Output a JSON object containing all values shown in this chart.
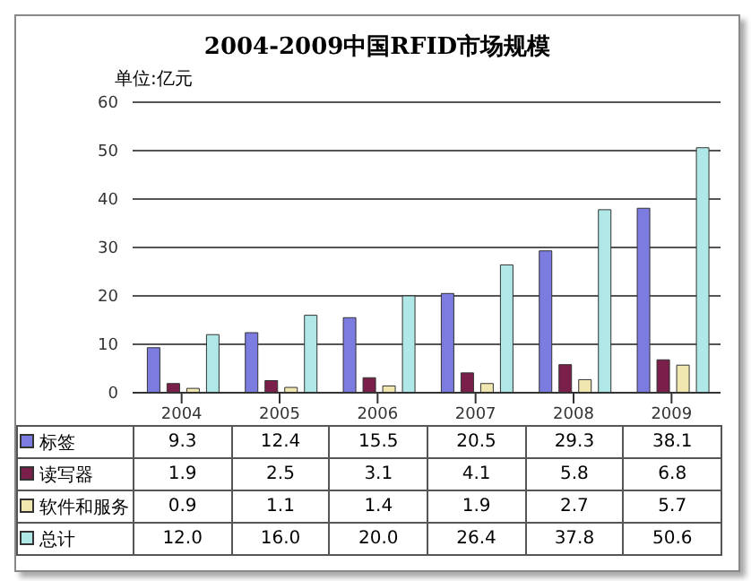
{
  "chart_data": {
    "type": "bar",
    "title": "2004-2009中国RFID市场规模",
    "ylabel": "单位:亿元",
    "categories": [
      "2004",
      "2005",
      "2006",
      "2007",
      "2008",
      "2009"
    ],
    "series": [
      {
        "name": "标签",
        "color": "#7b7be0",
        "values": [
          9.3,
          12.4,
          15.5,
          20.5,
          29.3,
          38.1
        ],
        "value_labels": [
          "9.3",
          "12.4",
          "15.5",
          "20.5",
          "29.3",
          "38.1"
        ]
      },
      {
        "name": "读写器",
        "color": "#7a1f4a",
        "values": [
          1.9,
          2.5,
          3.1,
          4.1,
          5.8,
          6.8
        ],
        "value_labels": [
          "1.9",
          "2.5",
          "3.1",
          "4.1",
          "5.8",
          "6.8"
        ]
      },
      {
        "name": "软件和服务",
        "color": "#f0e6b0",
        "values": [
          0.9,
          1.1,
          1.4,
          1.9,
          2.7,
          5.7
        ],
        "value_labels": [
          "0.9",
          "1.1",
          "1.4",
          "1.9",
          "2.7",
          "5.7"
        ]
      },
      {
        "name": "总计",
        "color": "#b0e8e8",
        "values": [
          12.0,
          16.0,
          20.0,
          26.4,
          37.8,
          50.6
        ],
        "value_labels": [
          "12.0",
          "16.0",
          "20.0",
          "26.4",
          "37.8",
          "50.6"
        ]
      }
    ],
    "ylim": [
      0,
      60
    ],
    "yticks": [
      0,
      10,
      20,
      30,
      40,
      50,
      60
    ],
    "grid": "y",
    "legend": "bottom"
  }
}
